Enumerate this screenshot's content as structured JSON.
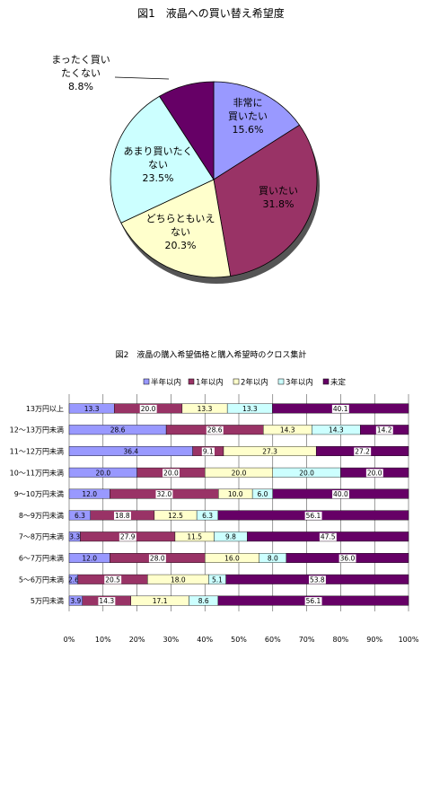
{
  "chart_data": [
    {
      "type": "pie",
      "title": "図1　液晶への買い替え希望度",
      "slices": [
        {
          "label_lines": [
            "非常に",
            "買いたい"
          ],
          "pct_label": "15.6%",
          "value": 15.6,
          "color": "#9999FF"
        },
        {
          "label_lines": [
            "買いたい"
          ],
          "pct_label": "31.8%",
          "value": 31.8,
          "color": "#993366"
        },
        {
          "label_lines": [
            "どちらともいえ",
            "ない"
          ],
          "pct_label": "20.3%",
          "value": 20.3,
          "color": "#FFFFCC"
        },
        {
          "label_lines": [
            "あまり買いたく",
            "ない"
          ],
          "pct_label": "23.5%",
          "value": 23.5,
          "color": "#CCFFFF"
        },
        {
          "label_lines": [
            "まったく買い",
            "たくない"
          ],
          "pct_label": "8.8%",
          "value": 8.8,
          "color": "#660066"
        }
      ]
    },
    {
      "type": "bar",
      "stacked": "percent",
      "orientation": "horizontal",
      "title": "図2　液晶の購入希望価格と購入希望時のクロス集計",
      "legend_position": "top",
      "categories": [
        "13万円以上",
        "12～13万円未満",
        "11～12万円未満",
        "10～11万円未満",
        "9～10万円未満",
        "8～9万円未満",
        "7～8万円未満",
        "6～7万円未満",
        "5～6万円未満",
        "5万円未満"
      ],
      "series": [
        {
          "name": "半年以内",
          "color": "#9999FF",
          "values": [
            13.3,
            28.6,
            36.4,
            20.0,
            12.0,
            6.3,
            3.3,
            12.0,
            2.6,
            3.9
          ],
          "labels": [
            "13.3",
            "28.6",
            "36.4",
            "20.0",
            "12.0",
            "6.3",
            "3.3",
            "12.0",
            "2.6",
            "3.9"
          ]
        },
        {
          "name": "1年以内",
          "color": "#993366",
          "values": [
            20.0,
            28.6,
            9.1,
            20.0,
            32.0,
            18.8,
            27.9,
            28.0,
            20.5,
            14.3
          ],
          "labels": [
            "20.0",
            "28.6",
            "9.1",
            "20.0",
            "32.0",
            "18.8",
            "27.9",
            "28.0",
            "20.5",
            "14.3"
          ]
        },
        {
          "name": "2年以内",
          "color": "#FFFFCC",
          "values": [
            13.3,
            14.3,
            27.3,
            20.0,
            10.0,
            12.5,
            11.5,
            16.0,
            18.0,
            17.1
          ],
          "labels": [
            "13.3",
            "14.3",
            "27.3",
            "20.0",
            "10.0",
            "12.5",
            "11.5",
            "16.0",
            "18.0",
            "17.1"
          ]
        },
        {
          "name": "3年以内",
          "color": "#CCFFFF",
          "values": [
            13.3,
            14.3,
            0,
            20.0,
            6.0,
            6.3,
            9.8,
            8.0,
            5.1,
            8.6
          ],
          "labels": [
            "13.3",
            "14.3",
            "",
            "20.0",
            "6.0",
            "6.3",
            "9.8",
            "8.0",
            "5.1",
            "8.6"
          ]
        },
        {
          "name": "未定",
          "color": "#660066",
          "values": [
            40.1,
            14.2,
            27.2,
            20.0,
            40.0,
            56.1,
            47.5,
            36.0,
            53.8,
            56.1
          ],
          "labels": [
            "40.1",
            "14.2",
            "27.2",
            "20.0",
            "40.0",
            "56.1",
            "47.5",
            "36.0",
            "53.8",
            "56.1"
          ]
        }
      ],
      "x_ticks": [
        "0%",
        "10%",
        "20%",
        "30%",
        "40%",
        "50%",
        "60%",
        "70%",
        "80%",
        "90%",
        "100%"
      ],
      "xlim": [
        0,
        100
      ]
    }
  ]
}
